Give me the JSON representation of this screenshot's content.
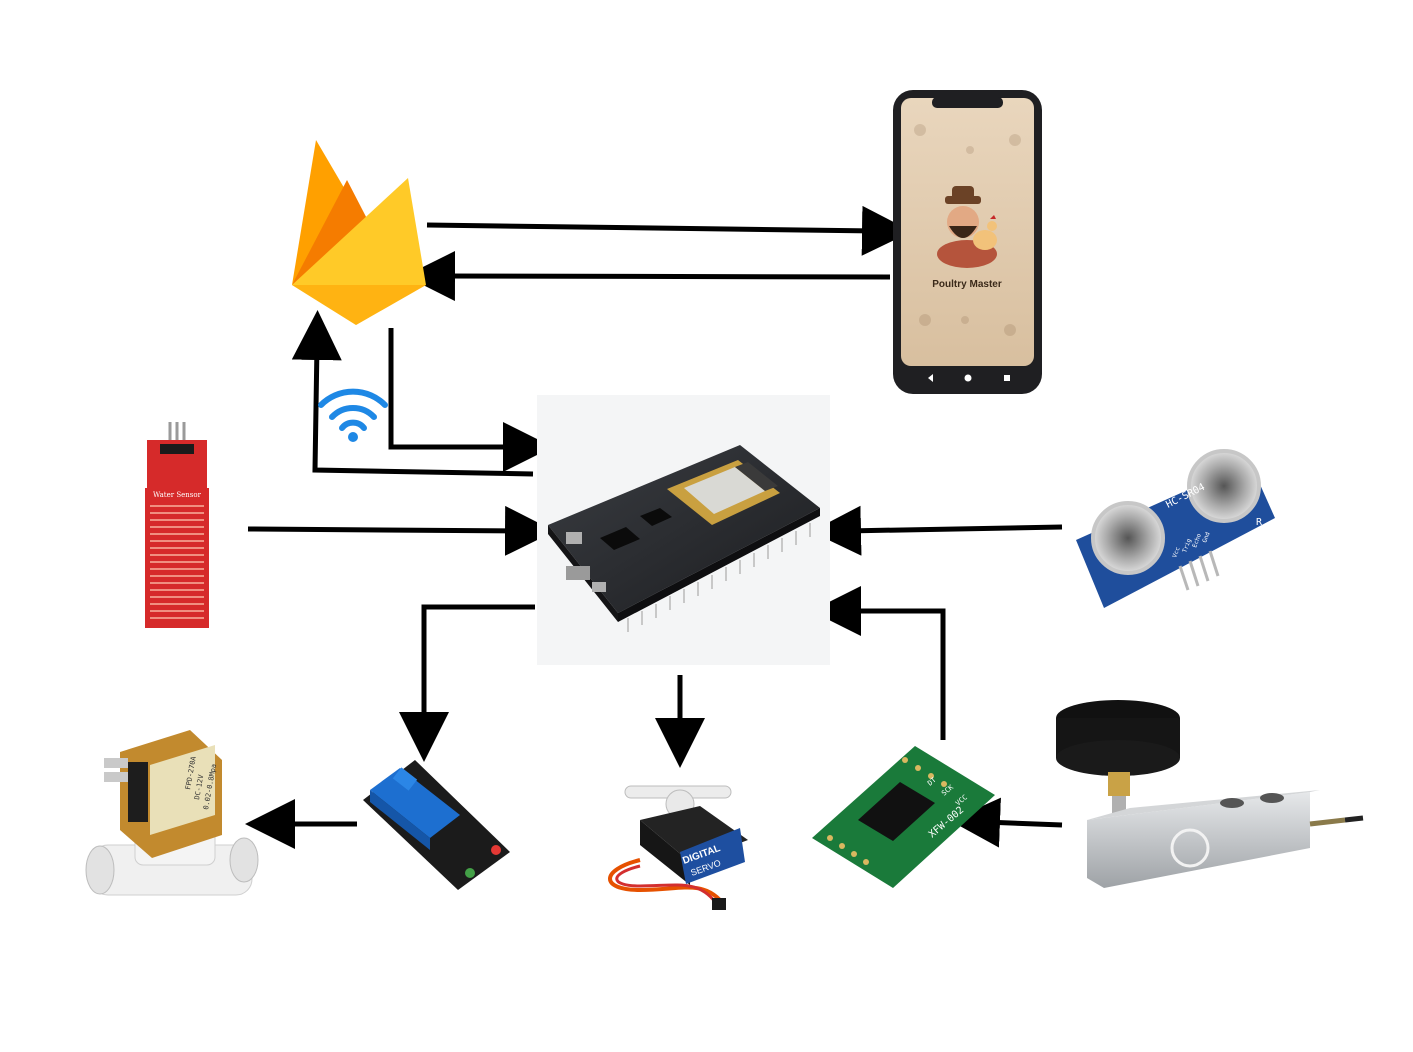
{
  "phone": {
    "app_name": "Poultry Master"
  },
  "water_sensor": {
    "label": "Water Sensor"
  },
  "ultrasonic": {
    "label": "HC-SR04",
    "side_label": "R",
    "pin_labels": [
      "Vcc",
      "Trig",
      "Echo",
      "Gnd"
    ]
  },
  "servo": {
    "brand": "DIGITAL",
    "type": "SERVO"
  },
  "hx711": {
    "label": "XFW-002",
    "pins": [
      "DT",
      "SCK",
      "VCC"
    ]
  },
  "solenoid": {
    "label": "FPD-270A",
    "spec1": "DC-12V",
    "spec2": "0.02-0.8Mpa"
  },
  "colors": {
    "arrow": "#000000",
    "firebase_dark": "#f57c00",
    "firebase_mid": "#ff9100",
    "firebase_light": "#ffc400",
    "wifi": "#1e88e5",
    "relay": "#1565c0",
    "pcb_green": "#1a7a3a",
    "water_sensor_red": "#d62a2a",
    "ultrasonic_blue": "#1f4e9c"
  },
  "icons": [
    "firebase-icon",
    "wifi-icon",
    "smartphone-icon",
    "nodemcu-board-icon",
    "water-sensor-icon",
    "ultrasonic-sensor-icon",
    "solenoid-valve-icon",
    "relay-module-icon",
    "servo-motor-icon",
    "hx711-module-icon",
    "load-cell-icon"
  ]
}
